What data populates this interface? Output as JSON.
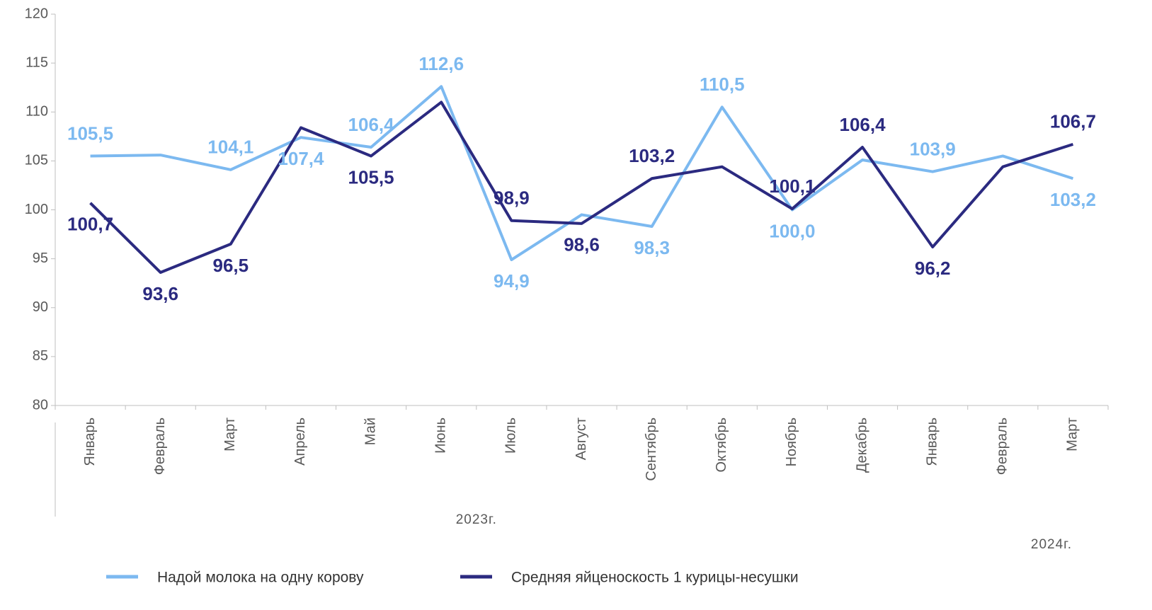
{
  "chart_data": {
    "type": "line",
    "categories": [
      "Январь",
      "Февраль",
      "Март",
      "Апрель",
      "Май",
      "Июнь",
      "Июль",
      "Август",
      "Сентябрь",
      "Октябрь",
      "Ноябрь",
      "Декабрь",
      "Январь",
      "Февраль",
      "Март"
    ],
    "groups": [
      {
        "label": "2023г.",
        "size": 12
      },
      {
        "label": "2024г.",
        "size": 3
      }
    ],
    "series": [
      {
        "name": "Надой молока на одну корову",
        "color": "#7cb9f0",
        "values": [
          105.5,
          105.6,
          104.1,
          107.4,
          106.4,
          112.6,
          94.9,
          99.5,
          98.3,
          110.5,
          100.0,
          105.1,
          103.9,
          105.5,
          103.2
        ],
        "value_labels": [
          "105,5",
          null,
          "104,1",
          "107,4",
          "106,4",
          "112,6",
          "94,9",
          null,
          "98,3",
          "110,5",
          "100,0",
          null,
          "103,9",
          null,
          "103,2"
        ]
      },
      {
        "name": "Средняя яйценоскость 1 курицы-несушки",
        "color": "#2b2a80",
        "values": [
          100.7,
          93.6,
          96.5,
          108.4,
          105.5,
          111.0,
          98.9,
          98.6,
          103.2,
          104.4,
          100.1,
          106.4,
          96.2,
          104.4,
          106.7
        ],
        "value_labels": [
          "100,7",
          "93,6",
          "96,5",
          null,
          "105,5",
          null,
          "98,9",
          "98,6",
          "103,2",
          null,
          "100,1",
          "106,4",
          "96,2",
          null,
          "106,7"
        ]
      }
    ],
    "ylim": [
      80,
      120
    ],
    "yticks": [
      80,
      85,
      90,
      95,
      100,
      105,
      110,
      115,
      120
    ],
    "legend": "bottom"
  }
}
